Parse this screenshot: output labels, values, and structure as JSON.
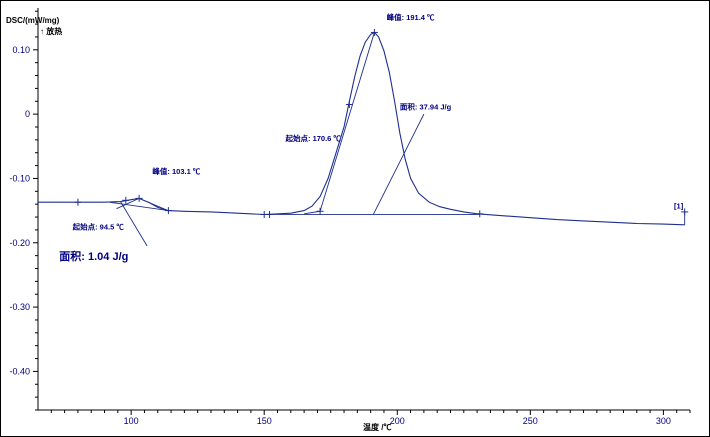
{
  "chart_data": {
    "type": "line",
    "ylabel": "DSC/(mW/mg)",
    "ylabel_sub": "↑ 放热",
    "xlabel": "温度 /℃",
    "xlim": [
      65,
      310
    ],
    "ylim": [
      -0.46,
      0.165
    ],
    "x_ticks": [
      100,
      150,
      200,
      250,
      300
    ],
    "y_ticks": [
      0.1,
      0,
      -0.1,
      -0.2,
      -0.3,
      -0.4
    ],
    "y_tick_labels": [
      "0.10",
      "0",
      "-0.10",
      "-0.20",
      "-0.30",
      "-0.40"
    ],
    "grid": false,
    "series": [
      {
        "color": "#1f2f8f",
        "x": [
          65,
          80,
          90,
          96,
          100,
          103,
          107,
          110,
          114,
          120,
          130,
          140,
          150,
          160,
          165,
          168,
          171,
          174,
          177,
          180,
          182,
          184,
          186,
          188,
          190,
          191.4,
          193,
          195,
          197,
          199,
          201,
          203,
          205,
          208,
          212,
          216,
          220,
          225,
          230,
          240,
          250,
          260,
          270,
          280,
          290,
          300,
          308
        ],
        "y": [
          -0.137,
          -0.137,
          -0.137,
          -0.136,
          -0.133,
          -0.131,
          -0.138,
          -0.145,
          -0.15,
          -0.151,
          -0.152,
          -0.154,
          -0.156,
          -0.154,
          -0.15,
          -0.143,
          -0.128,
          -0.1,
          -0.06,
          -0.02,
          0.02,
          0.058,
          0.09,
          0.112,
          0.124,
          0.127,
          0.12,
          0.098,
          0.065,
          0.02,
          -0.03,
          -0.07,
          -0.1,
          -0.123,
          -0.137,
          -0.144,
          -0.148,
          -0.152,
          -0.155,
          -0.158,
          -0.161,
          -0.164,
          -0.166,
          -0.168,
          -0.17,
          -0.171,
          -0.172
        ]
      }
    ],
    "markers": [
      {
        "x": 80,
        "y": -0.137
      },
      {
        "x": 98,
        "y": -0.134
      },
      {
        "x": 103,
        "y": -0.131
      },
      {
        "x": 114,
        "y": -0.15
      },
      {
        "x": 150,
        "y": -0.156
      },
      {
        "x": 152,
        "y": -0.156
      },
      {
        "x": 171,
        "y": -0.151
      },
      {
        "x": 182,
        "y": 0.015
      },
      {
        "x": 191.4,
        "y": 0.127
      },
      {
        "x": 231,
        "y": -0.155
      },
      {
        "x": 308,
        "y": -0.152
      }
    ],
    "annotations": [
      {
        "text": "峰值: 103.1 ℃",
        "x": 108,
        "y": -0.093
      },
      {
        "text": "起始点: 94.5 ℃",
        "x": 78,
        "y": -0.179
      },
      {
        "text": "面积: 1.04 J/g",
        "x": 73,
        "y": -0.227
      },
      {
        "text": "起始点: 170.6 ℃",
        "x": 158,
        "y": -0.042
      },
      {
        "text": "峰值: 191.4 ℃",
        "x": 196,
        "y": 0.146
      },
      {
        "text": "面积: 37.94 J/g",
        "x": 201,
        "y": 0.007
      },
      {
        "text": "[1]",
        "x": 304,
        "y": -0.147
      }
    ]
  }
}
